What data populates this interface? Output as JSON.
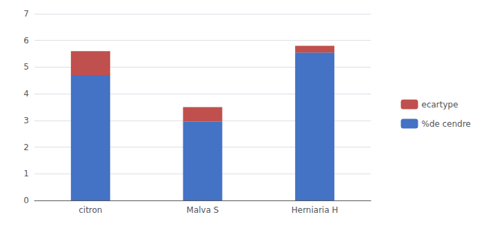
{
  "chart_data": {
    "type": "bar",
    "stacked": true,
    "categories": [
      "citron",
      "Malva S",
      "Herniaria H"
    ],
    "series": [
      {
        "name": "%de cendre",
        "color": "#4472C4",
        "values": [
          4.7,
          2.95,
          5.55
        ]
      },
      {
        "name": "ecartype",
        "color": "#C0504D",
        "values": [
          0.9,
          0.55,
          0.25
        ]
      }
    ],
    "ylim": [
      0,
      7
    ],
    "yticks": [
      0,
      1,
      2,
      3,
      4,
      5,
      6,
      7
    ],
    "grid": true,
    "legend": "right"
  }
}
